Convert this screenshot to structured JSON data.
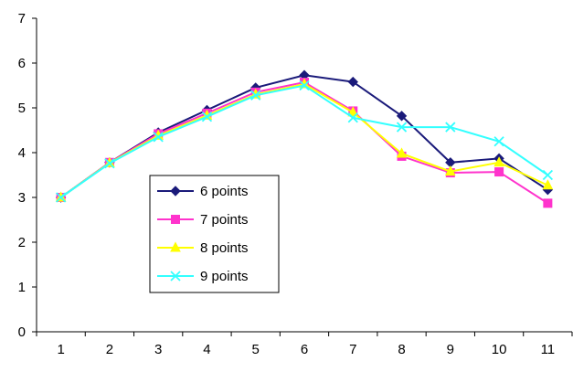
{
  "chart_data": {
    "type": "line",
    "title": "",
    "xlabel": "",
    "ylabel": "",
    "x": [
      1,
      2,
      3,
      4,
      5,
      6,
      7,
      8,
      9,
      10,
      11
    ],
    "x_tick_labels": [
      "1",
      "2",
      "3",
      "4",
      "5",
      "6",
      "7",
      "8",
      "9",
      "10",
      "11"
    ],
    "ylim": [
      0,
      7
    ],
    "y_tick_labels": [
      "0",
      "1",
      "2",
      "3",
      "4",
      "5",
      "6",
      "7"
    ],
    "grid": false,
    "legend_position": "left-center",
    "series": [
      {
        "name": "6 points",
        "color": "#1a1a7a",
        "marker": "diamond",
        "values": [
          3.0,
          3.78,
          4.45,
          4.95,
          5.45,
          5.73,
          5.58,
          4.82,
          3.78,
          3.87,
          3.17
        ]
      },
      {
        "name": "7 points",
        "color": "#ff33cc",
        "marker": "square",
        "values": [
          3.0,
          3.78,
          4.42,
          4.88,
          5.35,
          5.57,
          4.93,
          3.92,
          3.55,
          3.57,
          2.87
        ]
      },
      {
        "name": "8 points",
        "color": "#ffff00",
        "marker": "triangle",
        "values": [
          3.0,
          3.77,
          4.38,
          4.83,
          5.3,
          5.53,
          4.9,
          3.98,
          3.58,
          3.78,
          3.27
        ]
      },
      {
        "name": "9 points",
        "color": "#33ffff",
        "marker": "x",
        "values": [
          3.0,
          3.76,
          4.35,
          4.8,
          5.28,
          5.5,
          4.78,
          4.57,
          4.57,
          4.25,
          3.5
        ]
      }
    ]
  }
}
